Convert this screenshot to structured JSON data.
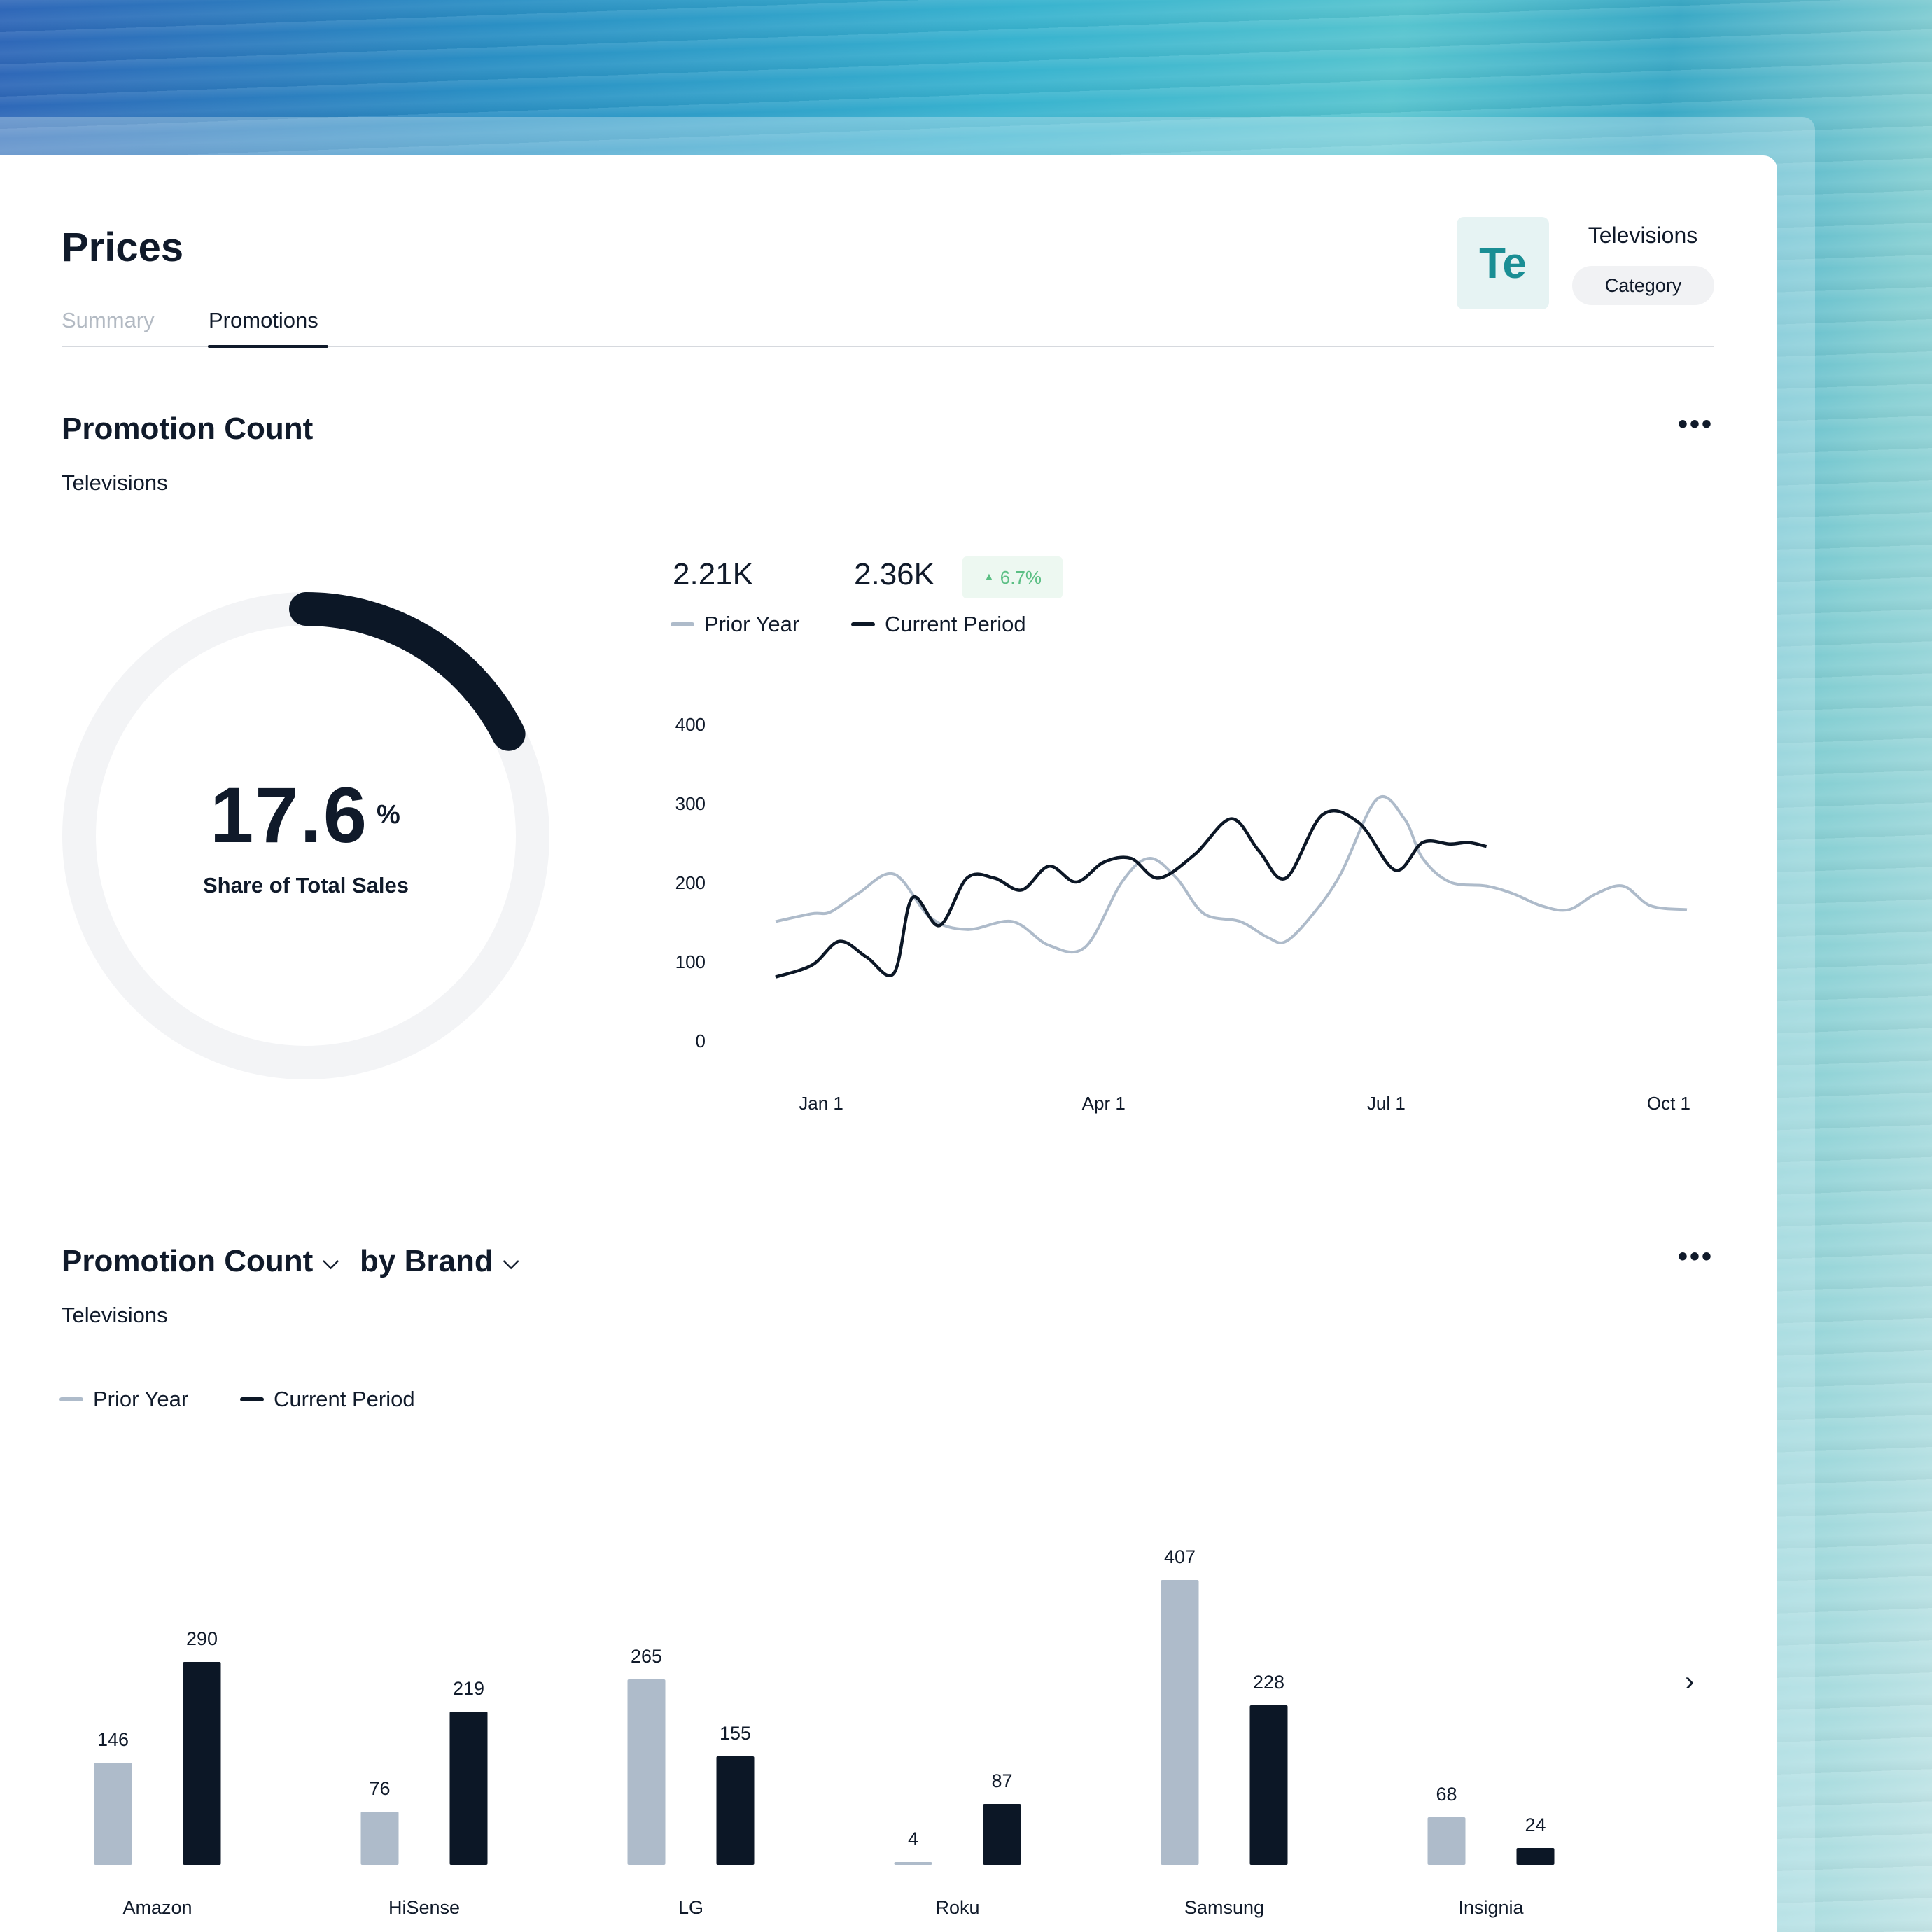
{
  "header": {
    "title": "Prices",
    "tabs": [
      {
        "label": "Summary",
        "active": false
      },
      {
        "label": "Promotions",
        "active": true
      }
    ],
    "category": {
      "avatar_text": "Te",
      "name": "Televisions",
      "badge": "Category"
    }
  },
  "colors": {
    "prior_year": "#aebbca",
    "current_period": "#0c1726",
    "positive": "#5bbf84",
    "accent": "#1a8e94"
  },
  "promotion_count": {
    "title": "Promotion Count",
    "subtitle": "Televisions",
    "more_icon": "more-horizontal-icon",
    "share": {
      "value": "17.6",
      "unit": "%",
      "label": "Share of Total Sales",
      "fraction": 0.176
    },
    "kpis": {
      "prior_year_value": "2.21K",
      "current_value": "2.36K",
      "delta": "6.7%",
      "prior_year_label": "Prior Year",
      "current_label": "Current Period"
    }
  },
  "brand_section": {
    "title": "Promotion Count",
    "by_label": "by Brand",
    "subtitle": "Televisions",
    "prior_year_label": "Prior Year",
    "current_label": "Current Period",
    "next_icon": "chevron-right-icon"
  },
  "chart_data": [
    {
      "type": "line",
      "y_ticks": [
        0,
        100,
        200,
        300,
        400
      ],
      "ylim": [
        0,
        400
      ],
      "x_ticks": [
        "Jan 1",
        "Apr 1",
        "Jul 1",
        "Oct 1"
      ],
      "series": [
        {
          "name": "Prior Year",
          "x": [
            0,
            0.04,
            0.06,
            0.09,
            0.13,
            0.17,
            0.21,
            0.26,
            0.3,
            0.34,
            0.38,
            0.41,
            0.44,
            0.47,
            0.51,
            0.54,
            0.56,
            0.59,
            0.62,
            0.66,
            0.69,
            0.71,
            0.74,
            0.78,
            0.81,
            0.84,
            0.87,
            0.9,
            0.93,
            0.96,
            1.0
          ],
          "values": [
            150,
            160,
            162,
            185,
            210,
            155,
            140,
            150,
            120,
            118,
            200,
            230,
            205,
            160,
            150,
            130,
            125,
            160,
            210,
            305,
            280,
            230,
            200,
            195,
            185,
            170,
            165,
            185,
            195,
            170,
            165
          ]
        },
        {
          "name": "Current Period",
          "x": [
            0,
            0.04,
            0.07,
            0.1,
            0.13,
            0.15,
            0.18,
            0.21,
            0.24,
            0.27,
            0.3,
            0.33,
            0.36,
            0.39,
            0.42,
            0.46,
            0.5,
            0.53,
            0.56,
            0.6,
            0.64,
            0.68,
            0.71,
            0.74,
            0.76,
            0.78
          ],
          "values": [
            80,
            95,
            125,
            105,
            85,
            180,
            145,
            205,
            205,
            190,
            220,
            200,
            225,
            230,
            205,
            235,
            280,
            240,
            205,
            285,
            275,
            215,
            250,
            248,
            250,
            245
          ]
        }
      ]
    },
    {
      "type": "bar",
      "categories": [
        "Amazon",
        "HiSense",
        "LG",
        "Roku",
        "Samsung",
        "Insignia"
      ],
      "series": [
        {
          "name": "Prior Year",
          "values": [
            146,
            76,
            265,
            4,
            407,
            68
          ]
        },
        {
          "name": "Current Period",
          "values": [
            290,
            219,
            155,
            87,
            228,
            24
          ]
        }
      ],
      "ylim": [
        0,
        420
      ]
    }
  ]
}
